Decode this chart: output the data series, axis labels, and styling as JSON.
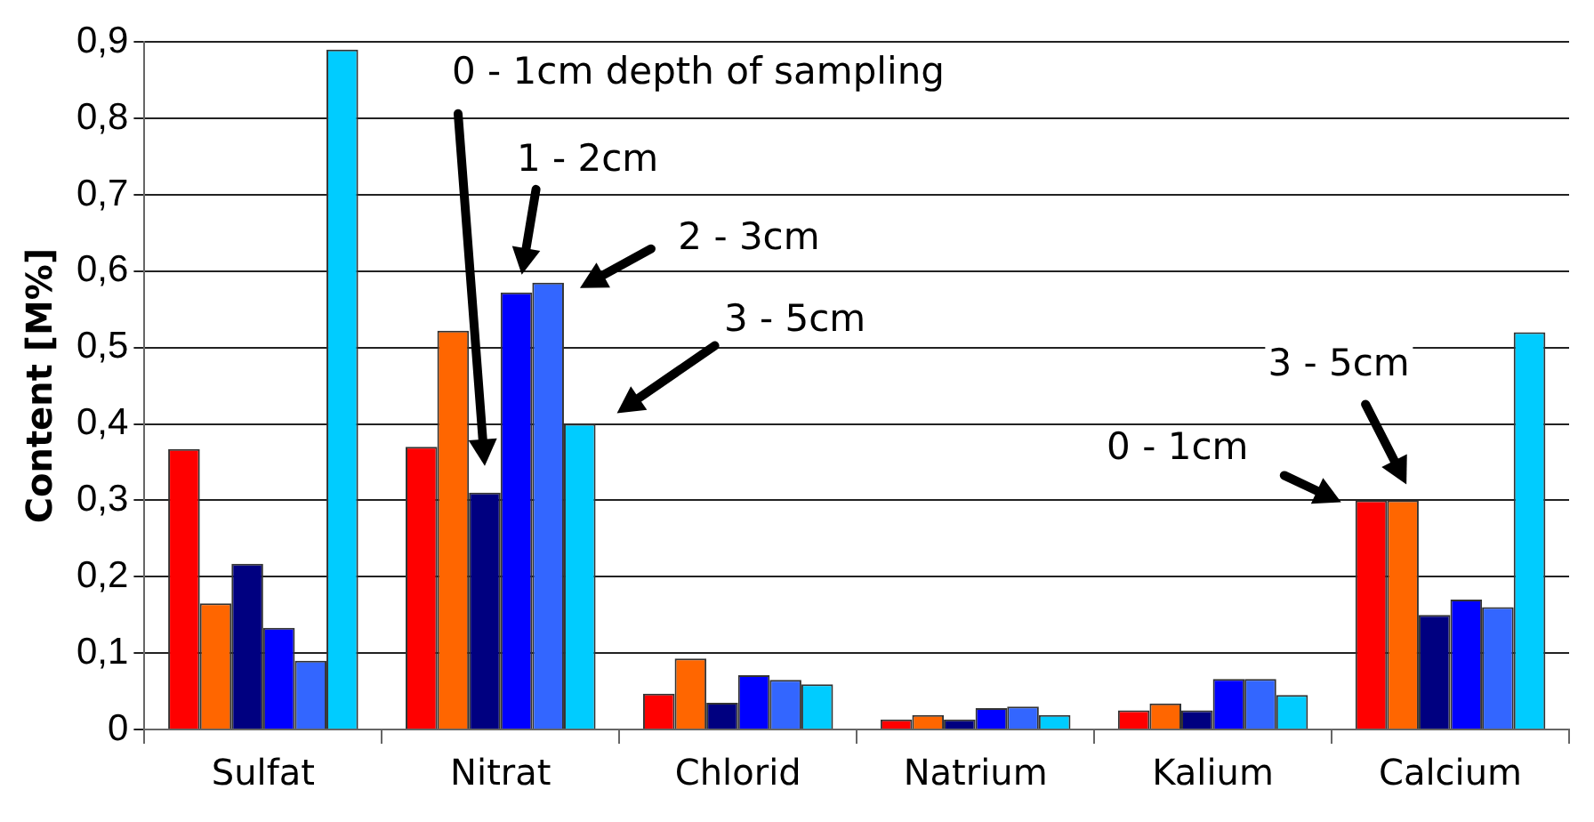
{
  "chart_data": {
    "type": "bar",
    "ylabel": "Content [M%]",
    "categories": [
      "Sulfat",
      "Nitrat",
      "Chlorid",
      "Natrium",
      "Kalium",
      "Calcium"
    ],
    "series": [
      {
        "color": "#ff0000",
        "values": [
          0.367,
          0.37,
          0.047,
          0.013,
          0.025,
          0.3
        ]
      },
      {
        "color": "#ff6600",
        "values": [
          0.165,
          0.522,
          0.093,
          0.019,
          0.034,
          0.3
        ]
      },
      {
        "color": "#000080",
        "values": [
          0.217,
          0.31,
          0.035,
          0.013,
          0.025,
          0.15
        ]
      },
      {
        "color": "#0000ff",
        "values": [
          0.133,
          0.572,
          0.071,
          0.028,
          0.066,
          0.17
        ]
      },
      {
        "color": "#3366ff",
        "values": [
          0.09,
          0.585,
          0.065,
          0.03,
          0.066,
          0.16
        ]
      },
      {
        "color": "#00ccff",
        "values": [
          0.89,
          0.4,
          0.059,
          0.019,
          0.045,
          0.52
        ]
      }
    ],
    "ylim": [
      0,
      0.9
    ],
    "yticks": [
      0,
      {
        "value": 0.1,
        "label": "0,1"
      },
      {
        "value": 0.2,
        "label": "0,2"
      },
      {
        "value": 0.3,
        "label": "0,3"
      },
      {
        "value": 0.4,
        "label": "0,4"
      },
      {
        "value": 0.5,
        "label": "0,5"
      },
      {
        "value": 0.6,
        "label": "0,6"
      },
      {
        "value": 0.7,
        "label": "0,7"
      },
      {
        "value": 0.8,
        "label": "0,8"
      },
      {
        "value": 0.9,
        "label": "0,9"
      }
    ],
    "grid": "y",
    "legend": false,
    "annotations": [
      "0 - 1cm depth of sampling",
      "1 - 2cm",
      "2 - 3cm",
      "3 - 5cm",
      "0 - 1cm",
      "3 - 5cm"
    ]
  }
}
